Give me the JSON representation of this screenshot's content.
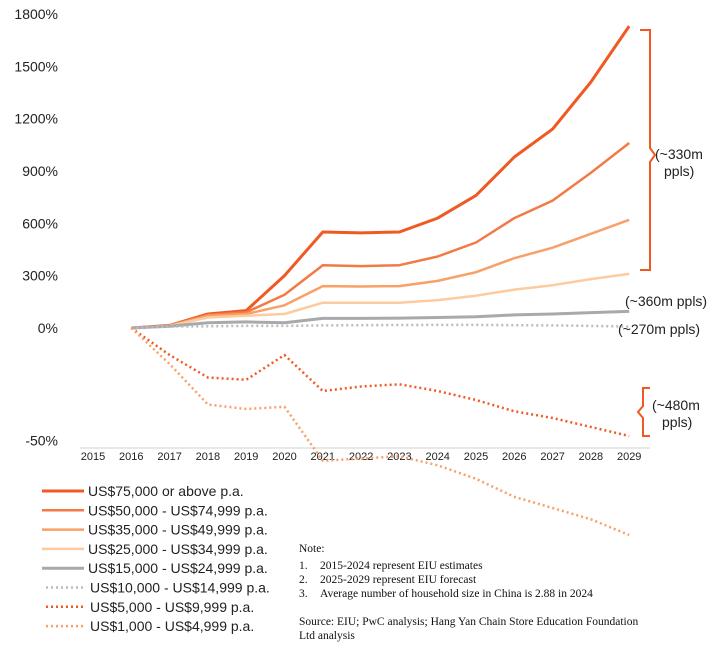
{
  "chart_data": {
    "type": "line",
    "x": [
      "2015",
      "2016",
      "2017",
      "2018",
      "2019",
      "2020",
      "2021",
      "2022",
      "2023",
      "2024",
      "2025",
      "2026",
      "2027",
      "2028",
      "2029"
    ],
    "y_ticks": [
      "1800%",
      "1500%",
      "1200%",
      "900%",
      "600%",
      "300%",
      "0%",
      "-50%"
    ],
    "y_tick_values": [
      1800,
      1500,
      1200,
      900,
      600,
      300,
      0,
      -50
    ],
    "series": [
      {
        "name": "US$75,000 or above p.a.",
        "color": "#F05A22",
        "style": "solid",
        "width": 3,
        "values": [
          null,
          0,
          15,
          80,
          100,
          300,
          550,
          545,
          550,
          630,
          760,
          980,
          1140,
          1410,
          1730
        ]
      },
      {
        "name": "US$50,000 - US$74,999 p.a.",
        "color": "#F37A45",
        "style": "solid",
        "width": 2.5,
        "values": [
          null,
          0,
          14,
          75,
          90,
          190,
          360,
          355,
          360,
          410,
          490,
          630,
          730,
          890,
          1060
        ]
      },
      {
        "name": "US$35,000 - US$49,999 p.a.",
        "color": "#F8A068",
        "style": "solid",
        "width": 2.5,
        "values": [
          null,
          0,
          13,
          70,
          80,
          130,
          240,
          238,
          240,
          270,
          320,
          400,
          460,
          540,
          620
        ]
      },
      {
        "name": "US$25,000 - US$34,999 p.a.",
        "color": "#FCCB9F",
        "style": "solid",
        "width": 2.5,
        "values": [
          null,
          0,
          12,
          60,
          70,
          80,
          145,
          145,
          145,
          160,
          185,
          220,
          245,
          280,
          310
        ]
      },
      {
        "name": "US$15,000 - US$24,999 p.a.",
        "color": "#A7A9AC",
        "style": "solid",
        "width": 3,
        "values": [
          null,
          0,
          10,
          30,
          35,
          30,
          55,
          55,
          57,
          60,
          65,
          75,
          80,
          88,
          95
        ]
      },
      {
        "name": "US$10,000 - US$14,999 p.a.",
        "color": "#B9BBBE",
        "style": "dot",
        "width": 2.5,
        "values": [
          null,
          0,
          8,
          10,
          12,
          12,
          15,
          16,
          17,
          18,
          18,
          16,
          15,
          12,
          8
        ]
      },
      {
        "name": "US$5,000 - US$9,999 p.a.",
        "color": "#F05A22",
        "style": "dot",
        "width": 2.5,
        "values": [
          null,
          0,
          -12,
          -22,
          -23,
          -12,
          -28,
          -26,
          -25,
          -28,
          -32,
          -37,
          -40,
          -44,
          -48
        ]
      },
      {
        "name": "US$1,000 - US$4,999 p.a.",
        "color": "#F8A068",
        "style": "dot",
        "width": 2.5,
        "values": [
          null,
          0,
          -16,
          -34,
          -36,
          -35,
          -59,
          -58,
          -57,
          -61,
          -67,
          -75,
          -80,
          -85,
          -92
        ]
      }
    ],
    "annotations": [
      {
        "lines": [
          "(~330m",
          "ppls)"
        ]
      },
      {
        "lines": [
          "(~360m ppls)"
        ]
      },
      {
        "lines": [
          "(~270m ppls)"
        ]
      },
      {
        "lines": [
          "(~480m",
          "ppls)"
        ]
      }
    ]
  },
  "note": {
    "title": "Note:",
    "items": [
      {
        "num": "1.",
        "text": "2015-2024 represent EIU estimates"
      },
      {
        "num": "2.",
        "text": "2025-2029 represent EIU forecast"
      },
      {
        "num": "3.",
        "text": "Average number of household size in China is 2.88 in 2024"
      }
    ],
    "source_lines": [
      "Source: EIU; PwC analysis; Hang Yan Chain Store Education Foundation",
      "Ltd analysis"
    ]
  },
  "colors": {
    "bracket": "#F05A22",
    "axis": "#D0D0D0"
  }
}
